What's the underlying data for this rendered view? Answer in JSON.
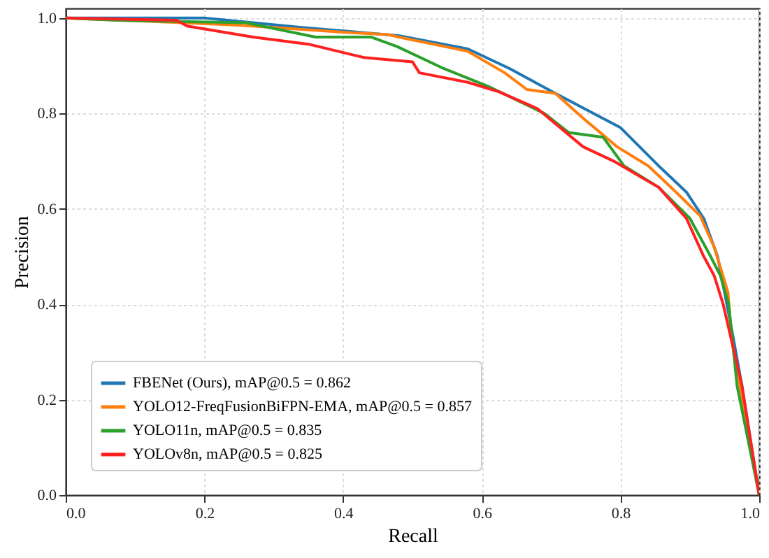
{
  "chart_data": {
    "type": "line",
    "xlabel": "Recall",
    "ylabel": "Precision",
    "xlim": [
      0,
      1
    ],
    "ylim": [
      0,
      1.02
    ],
    "xticks": [
      {
        "value": 0,
        "label": "0.0"
      },
      0.2,
      0.4,
      0.6,
      0.8,
      {
        "value": 1,
        "label": "1.0"
      }
    ],
    "yticks": [
      {
        "value": 0,
        "label": "0.0"
      },
      0.2,
      0.4,
      0.6,
      0.8,
      {
        "value": 1,
        "label": "1.0"
      }
    ],
    "grid": true,
    "legend": "bottom left",
    "series": [
      {
        "name": "FBENet (Ours), mAP@0.5 = 0.862",
        "color": "#1f77b4",
        "x": [
          0,
          0.2,
          0.34,
          0.48,
          0.58,
          0.64,
          0.706,
          0.8,
          0.855,
          0.895,
          0.92,
          0.94,
          0.96,
          0.975,
          1.0
        ],
        "values": [
          1,
          1,
          0.98,
          0.963,
          0.935,
          0.894,
          0.842,
          0.77,
          0.69,
          0.635,
          0.58,
          0.5,
          0.35,
          0.23,
          0
        ]
      },
      {
        "name": "YOLO12-FreqFusionBiFPN-EMA, mAP@0.5 = 0.857",
        "color": "#ff7f0e",
        "x": [
          0,
          0.25,
          0.4,
          0.465,
          0.48,
          0.58,
          0.633,
          0.665,
          0.706,
          0.746,
          0.795,
          0.84,
          0.88,
          0.915,
          0.935,
          0.955,
          0.96,
          1.0
        ],
        "values": [
          1,
          0.985,
          0.97,
          0.965,
          0.96,
          0.93,
          0.885,
          0.85,
          0.842,
          0.79,
          0.73,
          0.69,
          0.635,
          0.585,
          0.52,
          0.425,
          0.33,
          0
        ]
      },
      {
        "name": "YOLO11n, mAP@0.5 = 0.835",
        "color": "#2ca02c",
        "x": [
          0,
          0.075,
          0.26,
          0.36,
          0.44,
          0.478,
          0.545,
          0.61,
          0.69,
          0.725,
          0.775,
          0.805,
          0.855,
          0.9,
          0.93,
          0.944,
          0.956,
          0.968,
          1.0
        ],
        "values": [
          1,
          0.995,
          0.99,
          0.96,
          0.96,
          0.94,
          0.894,
          0.856,
          0.8,
          0.76,
          0.75,
          0.69,
          0.645,
          0.58,
          0.5,
          0.46,
          0.4,
          0.23,
          0
        ]
      },
      {
        "name": "YOLOv8n, mAP@0.5 = 0.825",
        "color": "#ff2020",
        "x": [
          0,
          0.16,
          0.175,
          0.27,
          0.35,
          0.43,
          0.5,
          0.51,
          0.58,
          0.625,
          0.68,
          0.746,
          0.79,
          0.855,
          0.895,
          0.92,
          0.935,
          0.948,
          0.975,
          1.0
        ],
        "values": [
          1,
          0.995,
          0.983,
          0.96,
          0.945,
          0.917,
          0.908,
          0.885,
          0.865,
          0.845,
          0.81,
          0.73,
          0.7,
          0.645,
          0.58,
          0.5,
          0.46,
          0.4,
          0.23,
          0
        ]
      }
    ]
  }
}
